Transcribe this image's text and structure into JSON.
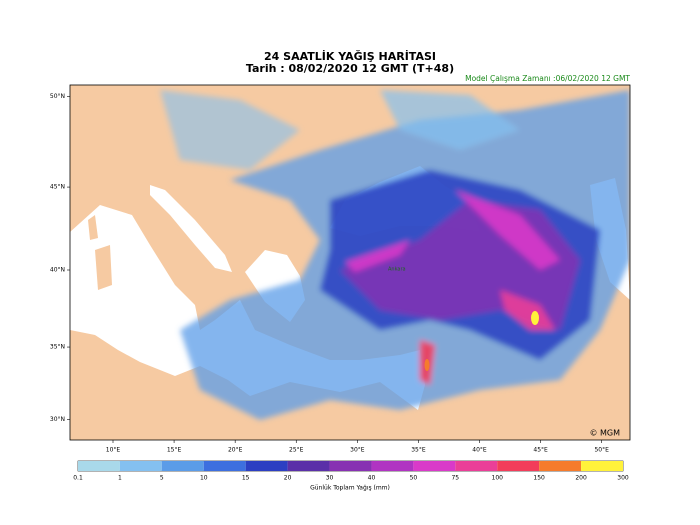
{
  "header": {
    "title": "24 SAATLİK YAĞIŞ HARİTASI",
    "subtitle": "Tarih : 08/02/2020  12 GMT (T+48)",
    "model_run": "Model Çalışma Zamanı :06/02/2020  12 GMT"
  },
  "map": {
    "lon_ticks": [
      {
        "value": 10,
        "label": "10°E"
      },
      {
        "value": 15,
        "label": "15°E"
      },
      {
        "value": 20,
        "label": "20°E"
      },
      {
        "value": 25,
        "label": "25°E"
      },
      {
        "value": 30,
        "label": "30°E"
      },
      {
        "value": 35,
        "label": "35°E"
      },
      {
        "value": 40,
        "label": "40°E"
      },
      {
        "value": 45,
        "label": "45°E"
      },
      {
        "value": 50,
        "label": "50°E"
      }
    ],
    "lat_ticks": [
      {
        "value": 30,
        "label": "30°N"
      },
      {
        "value": 35,
        "label": "35°N"
      },
      {
        "value": 40,
        "label": "40°N"
      },
      {
        "value": 45,
        "label": "45°N"
      },
      {
        "value": 50,
        "label": "50°N"
      }
    ],
    "place_label": "Ankara",
    "credit": "© MGM"
  },
  "legend": {
    "title": "Günlük Toplam Yağış (mm)",
    "bounds": [
      0.1,
      1,
      5,
      10,
      15,
      20,
      30,
      40,
      50,
      75,
      100,
      150,
      200,
      300
    ],
    "colors": [
      "#a9d9ea",
      "#84c0f0",
      "#5b9ce8",
      "#3d6fdf",
      "#2c3fc2",
      "#5a30a8",
      "#8731b2",
      "#b034c2",
      "#d93ac9",
      "#ea3f98",
      "#f23d5a",
      "#f57b2c",
      "#fff23a"
    ]
  }
}
